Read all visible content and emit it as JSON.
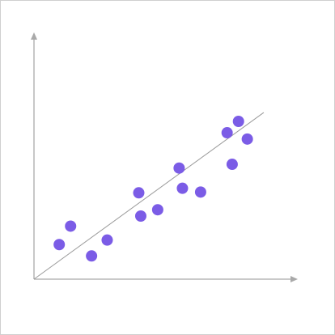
{
  "chart_data": {
    "type": "scatter",
    "title": "",
    "xlabel": "",
    "ylabel": "",
    "xlim": [
      0,
      10
    ],
    "ylim": [
      0,
      10
    ],
    "grid": false,
    "axes_color": "#a9a9a9",
    "point_color": "#7b5ce6",
    "trendline_color": "#9a9a9a",
    "trendline": {
      "x": [
        0,
        9.1
      ],
      "y": [
        0,
        6.6
      ]
    },
    "points": [
      {
        "x": 1.0,
        "y": 1.37
      },
      {
        "x": 1.45,
        "y": 2.1
      },
      {
        "x": 2.28,
        "y": 0.92
      },
      {
        "x": 2.9,
        "y": 1.55
      },
      {
        "x": 4.15,
        "y": 3.42
      },
      {
        "x": 4.23,
        "y": 2.5
      },
      {
        "x": 4.9,
        "y": 2.75
      },
      {
        "x": 5.75,
        "y": 4.4
      },
      {
        "x": 5.88,
        "y": 3.6
      },
      {
        "x": 6.6,
        "y": 3.45
      },
      {
        "x": 7.65,
        "y": 5.8
      },
      {
        "x": 7.85,
        "y": 4.55
      },
      {
        "x": 8.1,
        "y": 6.25
      },
      {
        "x": 8.45,
        "y": 5.55
      }
    ]
  }
}
